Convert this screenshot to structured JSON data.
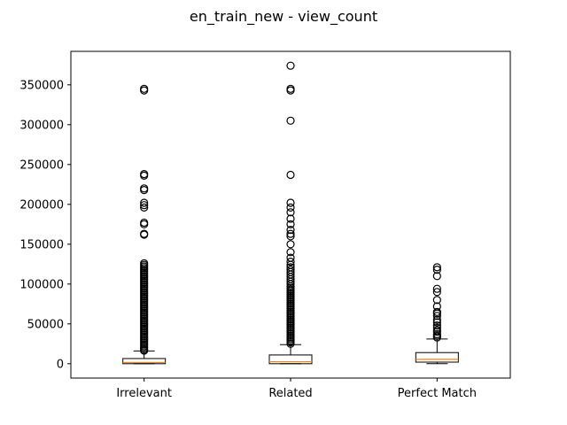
{
  "chart_data": {
    "type": "box",
    "title": "en_train_new - view_count",
    "xlabel": "",
    "ylabel": "",
    "categories": [
      "Irrelevant",
      "Related",
      "Perfect Match"
    ],
    "ylim": [
      -18000,
      392000
    ],
    "yticks": [
      0,
      50000,
      100000,
      150000,
      200000,
      250000,
      300000,
      350000
    ],
    "ytick_labels": [
      "0",
      "50000",
      "100000",
      "150000",
      "200000",
      "250000",
      "300000",
      "350000"
    ],
    "grid": false,
    "colors": {
      "box": "#000000",
      "median": "#ff7f0e",
      "flier": "#000000",
      "background": "#ffffff"
    },
    "series": [
      {
        "whisker_low": 0,
        "q1": 0,
        "median": 1500,
        "q3": 6500,
        "whisker_high": 16000,
        "outliers": [
          16500,
          18000,
          20000,
          22000,
          24000,
          26000,
          28000,
          30000,
          32000,
          34000,
          36000,
          38000,
          40000,
          42000,
          44000,
          46000,
          48000,
          50000,
          52000,
          54000,
          56000,
          58000,
          60000,
          62000,
          64000,
          66000,
          68000,
          70000,
          72000,
          74000,
          76000,
          78000,
          80000,
          82000,
          84000,
          86000,
          88000,
          90000,
          92000,
          94000,
          96000,
          98000,
          100000,
          102000,
          104000,
          106000,
          108000,
          110000,
          112000,
          114000,
          116000,
          118000,
          120000,
          122000,
          124000,
          126000,
          162000,
          163000,
          175000,
          177000,
          196000,
          199000,
          202000,
          218000,
          220000,
          236000,
          238000,
          343000,
          345000
        ]
      },
      {
        "whisker_low": 0,
        "q1": 0,
        "median": 2500,
        "q3": 11000,
        "whisker_high": 24000,
        "outliers": [
          25000,
          27000,
          29000,
          31000,
          33000,
          35000,
          37000,
          39000,
          41000,
          43000,
          45000,
          47000,
          49000,
          51000,
          53000,
          55000,
          57000,
          59000,
          61000,
          63000,
          65000,
          67000,
          69000,
          71000,
          73000,
          75000,
          77000,
          79000,
          81000,
          83000,
          85000,
          87000,
          89000,
          91000,
          93000,
          95000,
          97000,
          100000,
          103000,
          106000,
          109000,
          112000,
          115000,
          118000,
          121000,
          124000,
          128000,
          133000,
          140000,
          150000,
          160000,
          163000,
          168000,
          175000,
          182000,
          190000,
          196000,
          202000,
          237000,
          305000,
          343000,
          345000,
          374000
        ]
      },
      {
        "whisker_low": 0,
        "q1": 2000,
        "median": 5500,
        "q3": 14000,
        "whisker_high": 31000,
        "outliers": [
          33000,
          35000,
          37000,
          40000,
          42000,
          45000,
          48000,
          52000,
          55000,
          60000,
          63000,
          65000,
          72000,
          80000,
          90000,
          94000,
          110000,
          118000,
          121000
        ]
      }
    ]
  }
}
